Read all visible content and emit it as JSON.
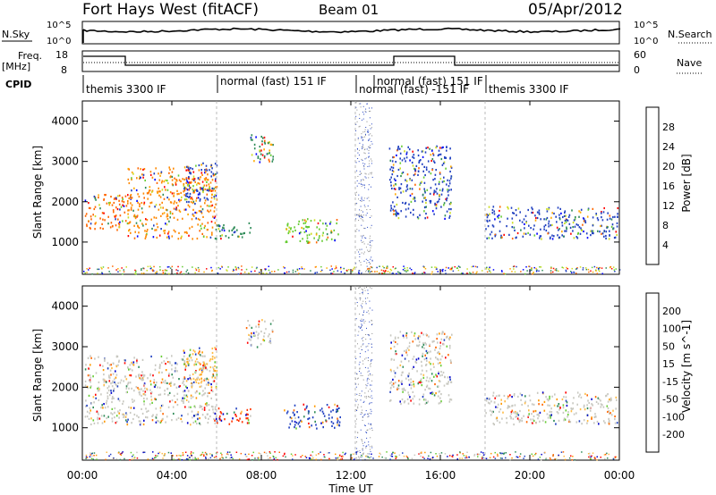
{
  "header": {
    "station": "Fort Hays West (fitACF)",
    "beam": "Beam 01",
    "date": "05/Apr/2012"
  },
  "noise_panel": {
    "left_label": "N.Sky",
    "right_label": "N.Search",
    "tick_top": "10^5",
    "tick_bottom": "10^0"
  },
  "freq_panel": {
    "left_label_line1": "Freq.",
    "left_label_line2": "[MHz]",
    "right_label": "Nave",
    "left_ticks": [
      "18",
      "8"
    ],
    "right_ticks": [
      "60",
      "0"
    ]
  },
  "cpid": {
    "label": "CPID",
    "segments": [
      {
        "text": "themis 3300 IF",
        "start_hour": 0.0
      },
      {
        "text": "normal (fast) 151 IF",
        "start_hour": 6.0
      },
      {
        "text": "normal (fast) -151 IF",
        "start_hour": 12.2
      },
      {
        "text": "normal (fast) 151 IF",
        "start_hour": 13.0
      },
      {
        "text": "themis 3300 IF",
        "start_hour": 18.0
      }
    ]
  },
  "chart_data": [
    {
      "type": "heatmap",
      "name": "Power",
      "ylabel": "Slant Range [km]",
      "xlabel": "Time UT",
      "xlim_hours": [
        0,
        24
      ],
      "ylim_km": [
        200,
        4500
      ],
      "yticks": [
        "1000",
        "2000",
        "3000",
        "4000"
      ],
      "colorbar_label": "Power [dB]",
      "colorbar_ticks": [
        "28",
        "24",
        "20",
        "16",
        "12",
        "8",
        "4"
      ],
      "colorbar_colors": [
        "#0000ff",
        "#2040c0",
        "#2e8b57",
        "#66cc33",
        "#ccdd22",
        "#ffaa00",
        "#ff6600",
        "#ff0000"
      ],
      "scatter_regions": [
        {
          "t0": 0.1,
          "t1": 2.0,
          "r0": 1300,
          "r1": 2200,
          "dominant": "#ff6600"
        },
        {
          "t0": 2.0,
          "t1": 6.0,
          "r0": 1100,
          "r1": 2900,
          "dominant": "#ff8800"
        },
        {
          "t0": 4.5,
          "t1": 6.0,
          "r0": 2000,
          "r1": 3000,
          "dominant": "#2040c0"
        },
        {
          "t0": 5.8,
          "t1": 7.5,
          "r0": 1100,
          "r1": 1500,
          "dominant": "#2e8b57"
        },
        {
          "t0": 7.3,
          "t1": 8.5,
          "r0": 3000,
          "r1": 3700,
          "dominant": "#2e8b57"
        },
        {
          "t0": 9.0,
          "t1": 11.5,
          "r0": 1000,
          "r1": 1600,
          "dominant": "#66cc33"
        },
        {
          "t0": 13.7,
          "t1": 16.5,
          "r0": 1600,
          "r1": 3400,
          "dominant": "#2040c0"
        },
        {
          "t0": 18.0,
          "t1": 23.9,
          "r0": 1100,
          "r1": 1900,
          "dominant": "#2040c0"
        }
      ]
    },
    {
      "type": "heatmap",
      "name": "Velocity",
      "ylabel": "Slant Range [km]",
      "xlabel": "Time UT",
      "xlim_hours": [
        0,
        24
      ],
      "ylim_km": [
        200,
        4500
      ],
      "yticks": [
        "1000",
        "2000",
        "3000",
        "4000"
      ],
      "xticks": [
        "00:00",
        "04:00",
        "08:00",
        "12:00",
        "16:00",
        "20:00",
        "00:00"
      ],
      "colorbar_label": "Velocity [m s^-1]",
      "colorbar_ticks": [
        "200",
        "100",
        "50",
        "15",
        "-15",
        "-50",
        "-100",
        "-200"
      ],
      "colorbar_colors": [
        "#ff0000",
        "#ff6600",
        "#ff9900",
        "#ffbb44",
        "#c8c8c0",
        "#66cc33",
        "#2e8b57",
        "#2040c0",
        "#0000cc"
      ],
      "scatter_regions": [
        {
          "t0": 0.1,
          "t1": 6.0,
          "r0": 1100,
          "r1": 2800,
          "dominant": "#c8c8c0"
        },
        {
          "t0": 4.5,
          "t1": 6.0,
          "r0": 2000,
          "r1": 3000,
          "dominant": "#ffbb44"
        },
        {
          "t0": 5.8,
          "t1": 7.5,
          "r0": 1100,
          "r1": 1500,
          "dominant": "#ff3300"
        },
        {
          "t0": 7.3,
          "t1": 8.5,
          "r0": 3000,
          "r1": 3700,
          "dominant": "#c8c8c0"
        },
        {
          "t0": 9.0,
          "t1": 11.5,
          "r0": 1000,
          "r1": 1600,
          "dominant": "#2040c0"
        },
        {
          "t0": 13.7,
          "t1": 16.5,
          "r0": 1600,
          "r1": 3400,
          "dominant": "#c8c8c0"
        },
        {
          "t0": 18.0,
          "t1": 23.9,
          "r0": 1100,
          "r1": 1900,
          "dominant": "#c8c8c0"
        }
      ]
    }
  ]
}
